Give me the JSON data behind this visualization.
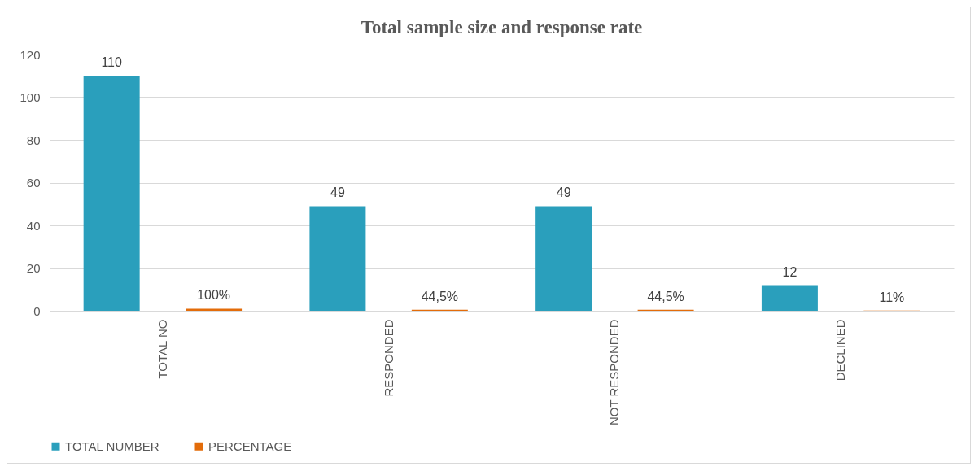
{
  "chart_data": {
    "type": "bar",
    "title": "Total sample size and response rate",
    "categories": [
      "TOTAL NO",
      "RESPONDED",
      "NOT RESPONDED",
      "DECLINED"
    ],
    "series": [
      {
        "name": "TOTAL NUMBER",
        "color": "#2a9fbc",
        "values": [
          110,
          49,
          49,
          12
        ],
        "value_labels": [
          "110",
          "49",
          "49",
          "12"
        ]
      },
      {
        "name": "PERCENTAGE",
        "color": "#e36c0a",
        "values": [
          1,
          0.445,
          0.445,
          0.11
        ],
        "value_labels": [
          "100%",
          "44,5%",
          "44,5%",
          "11%"
        ]
      }
    ],
    "ylim": [
      0,
      120
    ],
    "yticks": [
      0,
      20,
      40,
      60,
      80,
      100,
      120
    ],
    "grid": "y",
    "legend": "bottom"
  }
}
